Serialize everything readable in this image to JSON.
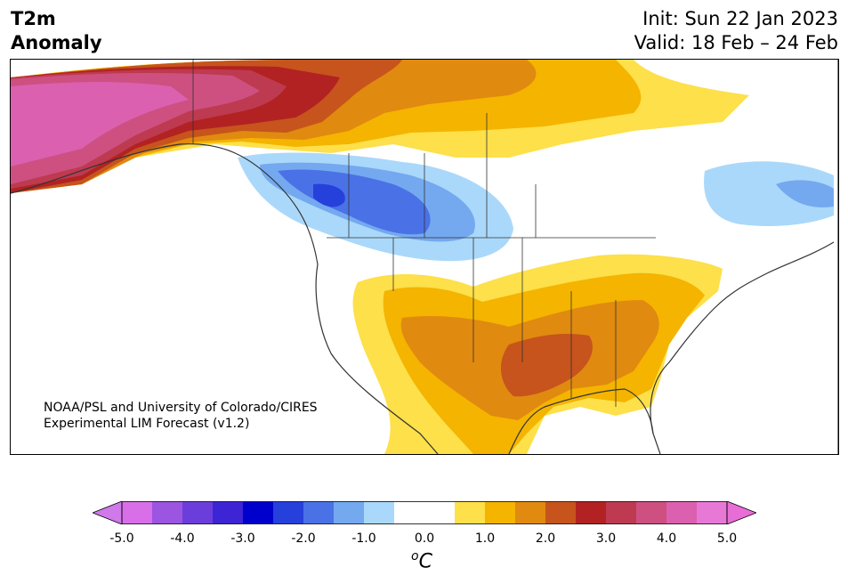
{
  "header": {
    "title_line1": "T2m",
    "title_line2": "Anomaly",
    "init_line": "Init: Sun 22 Jan 2023",
    "valid_line": "Valid: 18 Feb – 24 Feb"
  },
  "map": {
    "region": "North America",
    "credit_line1": "NOAA/PSL and University of Colorado/CIRES",
    "credit_line2": "Experimental LIM Forecast (v1.2)"
  },
  "colorbar": {
    "unit": "C",
    "unit_prefix": "o",
    "tick_labels": [
      "-5.0",
      "-4.0",
      "-3.0",
      "-2.0",
      "-1.0",
      "0.0",
      "1.0",
      "2.0",
      "3.0",
      "4.0",
      "5.0"
    ],
    "colors": [
      "#d96fe8",
      "#9b55e0",
      "#6b3edb",
      "#3d24d4",
      "#0000cc",
      "#2640dc",
      "#4a72e6",
      "#74a9f0",
      "#aad8fa",
      "#ffffff",
      "#ffffff",
      "#fde04a",
      "#f4b400",
      "#e08a10",
      "#c6541c",
      "#b22222",
      "#be3a50",
      "#cd5080",
      "#db60b0",
      "#e878d6"
    ],
    "under_color": "#cf79ea",
    "over_color": "#e86dd6"
  }
}
